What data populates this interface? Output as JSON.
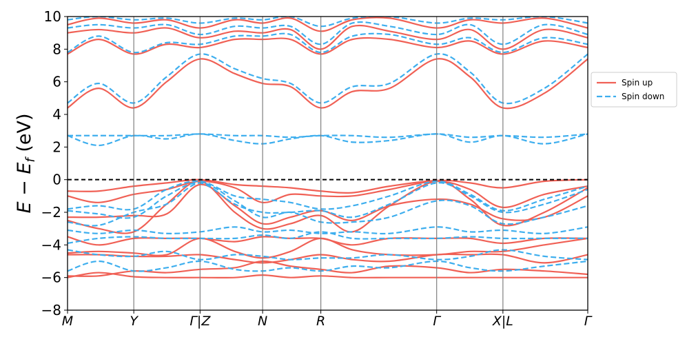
{
  "chart_data": {
    "type": "line",
    "title": "",
    "xlabel": "",
    "ylabel_parts": {
      "e": "E",
      "minus": " − ",
      "ef": "E",
      "sub": "f",
      "unit": " (eV)"
    },
    "ylim": [
      -8,
      10
    ],
    "yticks": [
      -8,
      -6,
      -4,
      -2,
      0,
      2,
      4,
      6,
      8,
      10
    ],
    "ytick_labels": [
      "−8",
      "−6",
      "−4",
      "−2",
      "0",
      "2",
      "4",
      "6",
      "8",
      "10"
    ],
    "xlim": [
      0,
      8.4
    ],
    "kpoints": [
      {
        "label": "M",
        "x": 0.0
      },
      {
        "label": "Y",
        "x": 1.07
      },
      {
        "label": "Γ|Z",
        "x": 2.14
      },
      {
        "label": "N",
        "x": 3.15
      },
      {
        "label": "R",
        "x": 4.09
      },
      {
        "label": "Γ",
        "x": 5.96
      },
      {
        "label": "X|L",
        "x": 7.03
      },
      {
        "label": "Γ",
        "x": 8.4
      }
    ],
    "fermi_level": 0,
    "grid": false,
    "legend": {
      "position": "center-right-outside",
      "entries": [
        "Spin up",
        "Spin down"
      ]
    },
    "series": [
      {
        "name": "Spin up",
        "color": "#f06055",
        "dash": "solid",
        "bands": [
          {
            "x": [
              0,
              0.5,
              1.07,
              1.6,
              2.14,
              2.7,
              3.15,
              3.6,
              4.09,
              4.6,
              5.2,
              5.96,
              6.5,
              7.03,
              7.7,
              8.4
            ],
            "y": [
              -6.0,
              -5.7,
              -5.95,
              -6.0,
              -6.0,
              -6.0,
              -5.85,
              -6.0,
              -5.9,
              -6.0,
              -6.0,
              -6.0,
              -6.0,
              -6.0,
              -6.0,
              -6.0
            ]
          },
          {
            "x": [
              0,
              0.5,
              1.07,
              1.6,
              2.14,
              2.7,
              3.15,
              3.6,
              4.09,
              4.6,
              5.2,
              5.96,
              6.5,
              7.03,
              7.7,
              8.4
            ],
            "y": [
              -5.9,
              -5.9,
              -5.6,
              -5.7,
              -5.5,
              -5.4,
              -5.0,
              -5.3,
              -5.5,
              -5.7,
              -5.3,
              -5.4,
              -5.7,
              -5.5,
              -5.6,
              -5.8
            ]
          },
          {
            "x": [
              0,
              0.5,
              1.07,
              1.6,
              2.14,
              2.7,
              3.15,
              3.6,
              4.09,
              4.6,
              5.2,
              5.96,
              6.5,
              7.03,
              7.7,
              8.4
            ],
            "y": [
              -4.6,
              -4.6,
              -4.7,
              -4.7,
              -4.6,
              -4.9,
              -5.1,
              -4.9,
              -4.6,
              -4.9,
              -5.0,
              -4.6,
              -4.6,
              -4.6,
              -5.1,
              -4.6
            ]
          },
          {
            "x": [
              0,
              0.5,
              1.07,
              1.6,
              2.14,
              2.7,
              3.15,
              3.6,
              4.09,
              4.6,
              5.2,
              5.96,
              6.5,
              7.03,
              7.7,
              8.4
            ],
            "y": [
              -4.5,
              -4.4,
              -4.5,
              -4.6,
              -3.6,
              -4.4,
              -4.8,
              -4.4,
              -3.6,
              -4.3,
              -4.6,
              -4.6,
              -4.4,
              -4.4,
              -4.0,
              -3.6
            ]
          },
          {
            "x": [
              0,
              0.5,
              1.07,
              1.6,
              2.14,
              2.7,
              3.15,
              3.6,
              4.09,
              4.6,
              5.2,
              5.96,
              6.5,
              7.03,
              7.7,
              8.4
            ],
            "y": [
              -3.5,
              -4.0,
              -3.6,
              -3.6,
              -3.6,
              -3.8,
              -3.5,
              -3.6,
              -3.6,
              -4.0,
              -3.6,
              -3.6,
              -3.6,
              -3.9,
              -3.6,
              -3.6
            ]
          },
          {
            "x": [
              0,
              0.5,
              1.07,
              1.6,
              2.14,
              2.7,
              3.15,
              3.6,
              4.09,
              4.6,
              5.2,
              5.96,
              6.5,
              7.03,
              7.7,
              8.4
            ],
            "y": [
              -2.5,
              -3.0,
              -3.2,
              -1.5,
              -0.1,
              -2.0,
              -3.0,
              -2.7,
              -2.2,
              -3.2,
              -1.6,
              -0.1,
              -1.2,
              -2.8,
              -2.0,
              -0.5
            ]
          },
          {
            "x": [
              0,
              0.5,
              1.07,
              1.6,
              2.14,
              2.7,
              3.15,
              3.6,
              4.09,
              4.6,
              5.2,
              5.96,
              6.5,
              7.03,
              7.7,
              8.4
            ],
            "y": [
              -2.3,
              -2.3,
              -2.2,
              -2.1,
              -0.3,
              -1.6,
              -2.7,
              -2.3,
              -1.9,
              -2.5,
              -1.6,
              -1.2,
              -1.5,
              -2.4,
              -2.3,
              -1.0
            ]
          },
          {
            "x": [
              0,
              0.5,
              1.07,
              1.6,
              2.14,
              2.7,
              3.15,
              3.6,
              4.09,
              4.6,
              5.2,
              5.96,
              6.5,
              7.03,
              7.7,
              8.4
            ],
            "y": [
              -1.0,
              -1.4,
              -0.9,
              -0.6,
              -0.1,
              -0.5,
              -1.4,
              -0.9,
              -1.0,
              -1.0,
              -0.6,
              -0.1,
              -0.6,
              -1.7,
              -0.9,
              -0.4
            ]
          },
          {
            "x": [
              0,
              0.5,
              1.07,
              1.6,
              2.14,
              2.7,
              3.15,
              3.6,
              4.09,
              4.6,
              5.2,
              5.96,
              6.5,
              7.03,
              7.7,
              8.4
            ],
            "y": [
              -0.7,
              -0.7,
              -0.4,
              -0.2,
              0.0,
              -0.3,
              -0.4,
              -0.5,
              -0.7,
              -0.8,
              -0.4,
              -0.05,
              -0.2,
              -0.5,
              -0.1,
              0.0
            ]
          },
          {
            "x": [
              0,
              0.5,
              1.07,
              1.6,
              2.14,
              2.7,
              3.15,
              3.6,
              4.09,
              4.6,
              5.2,
              5.96,
              6.5,
              7.03,
              7.7,
              8.4
            ],
            "y": [
              4.4,
              5.6,
              4.4,
              6.0,
              7.4,
              6.5,
              5.9,
              5.7,
              4.4,
              5.4,
              5.6,
              7.4,
              6.3,
              4.4,
              5.3,
              7.4
            ]
          },
          {
            "x": [
              0,
              0.5,
              1.07,
              1.6,
              2.14,
              2.7,
              3.15,
              3.6,
              4.09,
              4.6,
              5.2,
              5.96,
              6.5,
              7.03,
              7.7,
              8.4
            ],
            "y": [
              7.7,
              8.6,
              7.7,
              8.3,
              8.1,
              8.6,
              8.6,
              8.6,
              7.7,
              8.6,
              8.6,
              8.1,
              8.5,
              7.7,
              8.5,
              8.1
            ]
          },
          {
            "x": [
              0,
              0.5,
              1.07,
              1.6,
              2.14,
              2.7,
              3.15,
              3.6,
              4.09,
              4.6,
              5.2,
              5.96,
              6.5,
              7.03,
              7.7,
              8.4
            ],
            "y": [
              9.0,
              9.2,
              9.0,
              9.3,
              8.7,
              9.1,
              9.0,
              9.2,
              8.0,
              9.4,
              9.1,
              8.6,
              9.2,
              8.0,
              9.2,
              8.7
            ]
          },
          {
            "x": [
              0,
              0.5,
              1.07,
              1.6,
              2.14,
              2.7,
              3.15,
              3.6,
              4.09,
              4.6,
              5.2,
              5.96,
              6.5,
              7.03,
              7.7,
              8.4
            ],
            "y": [
              9.5,
              9.9,
              9.6,
              9.8,
              9.3,
              9.8,
              9.6,
              9.9,
              9.1,
              9.8,
              9.9,
              9.3,
              9.8,
              9.6,
              9.9,
              9.3
            ]
          }
        ]
      },
      {
        "name": "Spin down",
        "color": "#3daeee",
        "dash": "dashed",
        "bands": [
          {
            "x": [
              0,
              0.5,
              1.07,
              1.6,
              2.14,
              2.7,
              3.15,
              3.6,
              4.09,
              4.6,
              5.2,
              5.96,
              6.5,
              7.03,
              7.7,
              8.4
            ],
            "y": [
              -5.6,
              -5.0,
              -5.6,
              -5.4,
              -5.0,
              -5.5,
              -5.6,
              -5.4,
              -5.6,
              -5.3,
              -5.4,
              -5.0,
              -5.4,
              -5.6,
              -5.3,
              -5.0
            ]
          },
          {
            "x": [
              0,
              0.5,
              1.07,
              1.6,
              2.14,
              2.7,
              3.15,
              3.6,
              4.09,
              4.6,
              5.2,
              5.96,
              6.5,
              7.03,
              7.7,
              8.4
            ],
            "y": [
              -4.3,
              -4.6,
              -4.7,
              -4.4,
              -4.9,
              -4.6,
              -4.7,
              -4.9,
              -4.8,
              -4.8,
              -4.6,
              -4.9,
              -4.7,
              -4.3,
              -4.7,
              -4.9
            ]
          },
          {
            "x": [
              0,
              0.5,
              1.07,
              1.6,
              2.14,
              2.7,
              3.15,
              3.6,
              4.09,
              4.6,
              5.2,
              5.96,
              6.5,
              7.03,
              7.7,
              8.4
            ],
            "y": [
              -3.9,
              -3.6,
              -3.5,
              -3.6,
              -3.6,
              -3.6,
              -3.4,
              -3.6,
              -3.2,
              -3.6,
              -3.6,
              -3.6,
              -3.5,
              -3.6,
              -3.6,
              -3.6
            ]
          },
          {
            "x": [
              0,
              0.5,
              1.07,
              1.6,
              2.14,
              2.7,
              3.15,
              3.6,
              4.09,
              4.6,
              5.2,
              5.96,
              6.5,
              7.03,
              7.7,
              8.4
            ],
            "y": [
              -3.1,
              -3.3,
              -3.1,
              -3.3,
              -3.2,
              -2.9,
              -3.2,
              -3.1,
              -3.3,
              -3.2,
              -3.3,
              -2.9,
              -3.2,
              -3.1,
              -3.3,
              -2.9
            ]
          },
          {
            "x": [
              0,
              0.5,
              1.07,
              1.6,
              2.14,
              2.7,
              3.15,
              3.6,
              4.09,
              4.6,
              5.2,
              5.96,
              6.5,
              7.03,
              7.7,
              8.4
            ],
            "y": [
              -2.6,
              -2.8,
              -2.0,
              -1.5,
              -0.2,
              -1.3,
              -2.3,
              -2.0,
              -2.6,
              -2.6,
              -2.3,
              -1.3,
              -1.6,
              -2.7,
              -2.3,
              -1.6
            ]
          },
          {
            "x": [
              0,
              0.5,
              1.07,
              1.6,
              2.14,
              2.7,
              3.15,
              3.6,
              4.09,
              4.6,
              5.2,
              5.96,
              6.5,
              7.03,
              7.7,
              8.4
            ],
            "y": [
              -1.9,
              -2.1,
              -2.3,
              -1.0,
              -0.2,
              -1.5,
              -2.0,
              -2.0,
              -1.9,
              -2.3,
              -1.5,
              -0.2,
              -1.0,
              -2.0,
              -1.5,
              -0.6
            ]
          },
          {
            "x": [
              0,
              0.5,
              1.07,
              1.6,
              2.14,
              2.7,
              3.15,
              3.6,
              4.09,
              4.6,
              5.2,
              5.96,
              6.5,
              7.03,
              7.7,
              8.4
            ],
            "y": [
              -1.8,
              -1.6,
              -1.8,
              -0.6,
              -0.1,
              -1.0,
              -1.2,
              -1.4,
              -1.8,
              -1.6,
              -1.0,
              -0.1,
              -0.9,
              -1.9,
              -1.2,
              -0.4
            ]
          },
          {
            "x": [
              0,
              0.5,
              1.07,
              1.6,
              2.14,
              2.7,
              3.15,
              3.6,
              4.09,
              4.6,
              5.2,
              5.96,
              6.5,
              7.03,
              7.7,
              8.4
            ],
            "y": [
              2.7,
              2.1,
              2.7,
              2.5,
              2.8,
              2.4,
              2.2,
              2.5,
              2.7,
              2.3,
              2.4,
              2.8,
              2.3,
              2.7,
              2.2,
              2.8
            ]
          },
          {
            "x": [
              0,
              0.5,
              1.07,
              1.6,
              2.14,
              2.7,
              3.15,
              3.6,
              4.09,
              4.6,
              5.2,
              5.96,
              6.5,
              7.03,
              7.7,
              8.4
            ],
            "y": [
              2.7,
              2.7,
              2.7,
              2.7,
              2.8,
              2.7,
              2.7,
              2.6,
              2.7,
              2.7,
              2.6,
              2.8,
              2.6,
              2.7,
              2.6,
              2.8
            ]
          },
          {
            "x": [
              0,
              0.5,
              1.07,
              1.6,
              2.14,
              2.7,
              3.15,
              3.6,
              4.09,
              4.6,
              5.2,
              5.96,
              6.5,
              7.03,
              7.7,
              8.4
            ],
            "y": [
              4.7,
              5.9,
              4.7,
              6.3,
              7.7,
              6.8,
              6.2,
              5.9,
              4.7,
              5.7,
              5.9,
              7.7,
              6.6,
              4.7,
              5.6,
              7.7
            ]
          },
          {
            "x": [
              0,
              0.5,
              1.07,
              1.6,
              2.14,
              2.7,
              3.15,
              3.6,
              4.09,
              4.6,
              5.2,
              5.96,
              6.5,
              7.03,
              7.7,
              8.4
            ],
            "y": [
              7.8,
              8.8,
              7.8,
              8.4,
              8.3,
              8.8,
              8.8,
              8.9,
              7.8,
              8.8,
              8.9,
              8.3,
              8.7,
              7.8,
              8.7,
              8.3
            ]
          },
          {
            "x": [
              0,
              0.5,
              1.07,
              1.6,
              2.14,
              2.7,
              3.15,
              3.6,
              4.09,
              4.6,
              5.2,
              5.96,
              6.5,
              7.03,
              7.7,
              8.4
            ],
            "y": [
              9.3,
              9.5,
              9.3,
              9.5,
              8.9,
              9.4,
              9.3,
              9.4,
              8.3,
              9.6,
              9.4,
              8.9,
              9.5,
              8.3,
              9.5,
              8.9
            ]
          },
          {
            "x": [
              0,
              0.5,
              1.07,
              1.6,
              2.14,
              2.7,
              3.15,
              3.6,
              4.09,
              4.6,
              5.2,
              5.96,
              6.5,
              7.03,
              7.7,
              8.4
            ],
            "y": [
              9.8,
              10.0,
              9.8,
              9.9,
              9.6,
              9.9,
              9.8,
              10.0,
              9.4,
              9.9,
              10.0,
              9.6,
              9.9,
              9.8,
              10.0,
              9.6
            ]
          }
        ]
      }
    ]
  }
}
